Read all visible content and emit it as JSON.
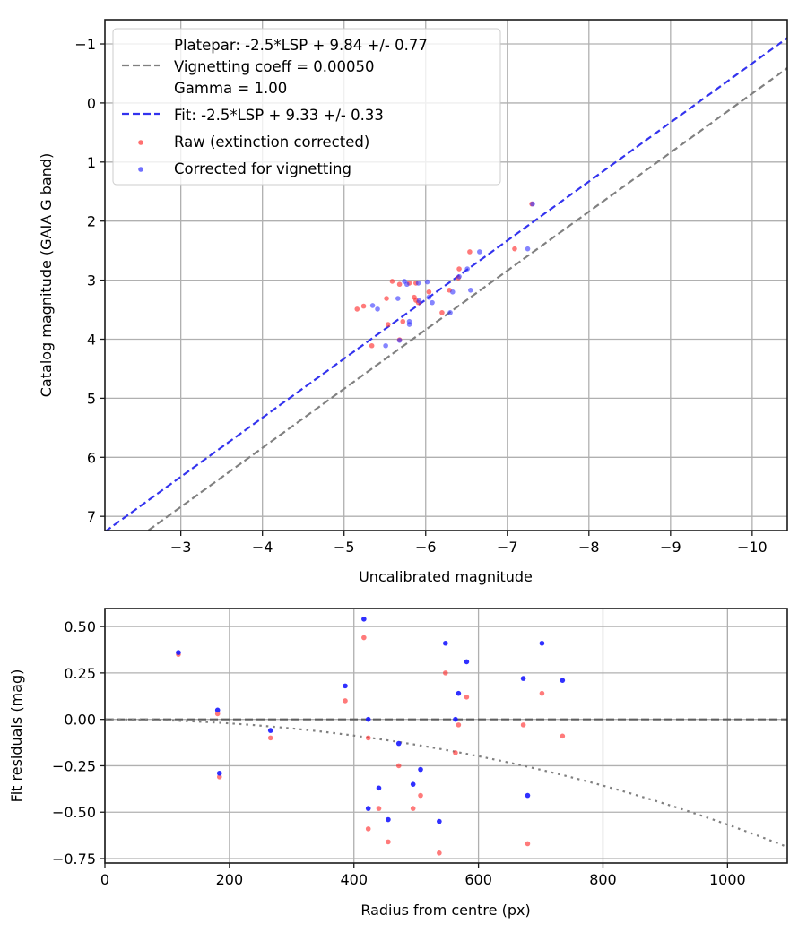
{
  "chart_data": [
    {
      "type": "scatter",
      "title": "",
      "xlabel": "Uncalibrated magnitude",
      "ylabel": "Catalog magnitude (GAIA G band)",
      "xlim": [
        -2.07,
        -10.43
      ],
      "ylim": [
        7.24,
        -1.41
      ],
      "x_inverted": true,
      "y_inverted": true,
      "grid": true,
      "xticks": [
        -3,
        -4,
        -5,
        -6,
        -7,
        -8,
        -9,
        -10
      ],
      "xtick_labels": [
        "−3",
        "−4",
        "−5",
        "−6",
        "−7",
        "−8",
        "−9",
        "−10"
      ],
      "yticks": [
        -1,
        0,
        1,
        2,
        3,
        4,
        5,
        6,
        7
      ],
      "ytick_labels": [
        "−1",
        "0",
        "1",
        "2",
        "3",
        "4",
        "5",
        "6",
        "7"
      ],
      "legend_position": "top-left",
      "legend": [
        {
          "label": "Platepar: -2.5*LSP + 9.84 +/- 0.77",
          "style": "none"
        },
        {
          "label": "Vignetting coeff = 0.00050",
          "style": "dashed",
          "color": "#808080"
        },
        {
          "label": "Gamma = 1.00",
          "style": "none"
        },
        {
          "label": "Fit: -2.5*LSP + 9.33 +/- 0.33",
          "style": "dashed",
          "color": "#3333ee"
        },
        {
          "label": "Raw (extinction corrected)",
          "style": "dot",
          "color": "#ff3333"
        },
        {
          "label": "Corrected for vignetting",
          "style": "dot",
          "color": "#3333ff"
        }
      ],
      "lines": [
        {
          "name": "Platepar",
          "slope": 1,
          "intercept": 9.84,
          "color": "#808080",
          "style": "dashed"
        },
        {
          "name": "Fit",
          "slope": 1,
          "intercept": 9.33,
          "color": "#3333ee",
          "style": "dashed"
        }
      ],
      "series": [
        {
          "name": "Raw (extinction corrected)",
          "color": "#ff3333",
          "points": [
            [
              -5.16,
              3.49
            ],
            [
              -5.24,
              3.44
            ],
            [
              -5.52,
              3.31
            ],
            [
              -5.59,
              3.02
            ],
            [
              -5.68,
              3.07
            ],
            [
              -5.8,
              3.05
            ],
            [
              -5.88,
              3.05
            ],
            [
              -5.86,
              3.29
            ],
            [
              -5.88,
              3.34
            ],
            [
              -5.91,
              3.38
            ],
            [
              -6.04,
              3.2
            ],
            [
              -6.29,
              3.17
            ],
            [
              -6.41,
              2.81
            ],
            [
              -6.4,
              2.96
            ],
            [
              -5.54,
              3.75
            ],
            [
              -5.72,
              3.7
            ],
            [
              -6.2,
              3.55
            ],
            [
              -5.34,
              4.11
            ],
            [
              -5.68,
              4.01
            ],
            [
              -6.54,
              2.52
            ],
            [
              -7.09,
              2.47
            ],
            [
              -7.3,
              1.71
            ]
          ]
        },
        {
          "name": "Corrected for vignetting",
          "color": "#3333ff",
          "points": [
            [
              -5.35,
              3.43
            ],
            [
              -5.41,
              3.49
            ],
            [
              -5.66,
              3.31
            ],
            [
              -5.74,
              3.02
            ],
            [
              -5.77,
              3.07
            ],
            [
              -5.91,
              3.05
            ],
            [
              -6.02,
              3.03
            ],
            [
              -5.92,
              3.35
            ],
            [
              -6.04,
              3.29
            ],
            [
              -6.08,
              3.38
            ],
            [
              -6.33,
              3.2
            ],
            [
              -6.55,
              3.17
            ],
            [
              -6.51,
              2.81
            ],
            [
              -6.41,
              2.94
            ],
            [
              -5.8,
              3.7
            ],
            [
              -5.8,
              3.75
            ],
            [
              -6.3,
              3.55
            ],
            [
              -5.51,
              4.11
            ],
            [
              -5.68,
              4.02
            ],
            [
              -6.66,
              2.52
            ],
            [
              -7.25,
              2.47
            ],
            [
              -7.31,
              1.71
            ]
          ]
        }
      ]
    },
    {
      "type": "scatter",
      "title": "",
      "xlabel": "Radius from centre (px)",
      "ylabel": "Fit residuals (mag)",
      "xlim": [
        0,
        1096
      ],
      "ylim": [
        -0.774,
        0.597
      ],
      "grid": true,
      "xticks": [
        0,
        200,
        400,
        600,
        800,
        1000
      ],
      "xtick_labels": [
        "0",
        "200",
        "400",
        "600",
        "800",
        "1000"
      ],
      "yticks": [
        0.5,
        0.25,
        0,
        -0.25,
        -0.5,
        -0.75
      ],
      "ytick_labels": [
        "0.50",
        "0.25",
        "0.00",
        "−0.25",
        "−0.50",
        "−0.75"
      ],
      "lines": [
        {
          "name": "zero",
          "type": "hline",
          "y": 0,
          "color": "#555555",
          "style": "dashed"
        },
        {
          "name": "vignetting-model",
          "type": "function",
          "formula": "2.5*log10(cos(r*0.0005)^4)",
          "coeff": 0.0005,
          "color": "#808080",
          "style": "dotted"
        }
      ],
      "series": [
        {
          "name": "Raw (extinction corrected)",
          "color": "#ff3333",
          "points": [
            [
              118,
              0.35
            ],
            [
              181,
              0.03
            ],
            [
              184,
              -0.31
            ],
            [
              266,
              -0.1
            ],
            [
              386,
              0.1
            ],
            [
              416,
              0.44
            ],
            [
              423,
              -0.1
            ],
            [
              423,
              -0.59
            ],
            [
              440,
              -0.48
            ],
            [
              455,
              -0.66
            ],
            [
              472,
              -0.25
            ],
            [
              495,
              -0.48
            ],
            [
              507,
              -0.41
            ],
            [
              537,
              -0.72
            ],
            [
              547,
              0.25
            ],
            [
              563,
              -0.18
            ],
            [
              568,
              -0.03
            ],
            [
              581,
              0.12
            ],
            [
              672,
              -0.03
            ],
            [
              679,
              -0.67
            ],
            [
              702,
              0.14
            ],
            [
              735,
              -0.09
            ]
          ]
        },
        {
          "name": "Corrected for vignetting",
          "color": "#1a1aff",
          "points": [
            [
              118,
              0.36
            ],
            [
              181,
              0.05
            ],
            [
              184,
              -0.29
            ],
            [
              266,
              -0.06
            ],
            [
              386,
              0.18
            ],
            [
              416,
              0.54
            ],
            [
              423,
              0.0
            ],
            [
              423,
              -0.48
            ],
            [
              440,
              -0.37
            ],
            [
              455,
              -0.54
            ],
            [
              472,
              -0.13
            ],
            [
              495,
              -0.35
            ],
            [
              507,
              -0.27
            ],
            [
              537,
              -0.55
            ],
            [
              547,
              0.41
            ],
            [
              563,
              0.0
            ],
            [
              568,
              0.14
            ],
            [
              581,
              0.31
            ],
            [
              672,
              0.22
            ],
            [
              679,
              -0.41
            ],
            [
              702,
              0.41
            ],
            [
              735,
              0.21
            ]
          ]
        }
      ]
    }
  ]
}
